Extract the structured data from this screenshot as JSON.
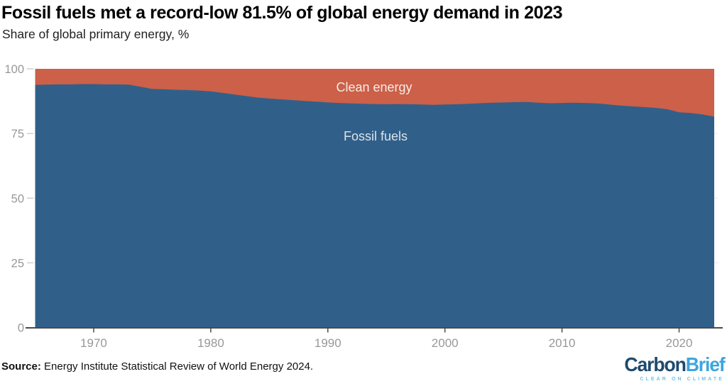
{
  "header": {
    "title": "Fossil fuels met a record-low 81.5% of global energy demand in 2023",
    "subtitle": "Share of global primary energy, %"
  },
  "chart_data": {
    "type": "area",
    "stacked": true,
    "title": "Fossil fuels met a record-low 81.5% of global energy demand in 2023",
    "subtitle": "Share of global primary energy, %",
    "ylabel": "Share of global primary energy, %",
    "xlabel": "",
    "ylim": [
      0,
      100
    ],
    "xlim": [
      1965,
      2023
    ],
    "yticks": [
      0,
      25,
      50,
      75,
      100
    ],
    "xticks": [
      1970,
      1980,
      1990,
      2000,
      2010,
      2020
    ],
    "grid": "horizontal",
    "legend_position": "labels-inside-areas",
    "x": [
      1965,
      1966,
      1967,
      1968,
      1969,
      1970,
      1971,
      1972,
      1973,
      1974,
      1975,
      1976,
      1977,
      1978,
      1979,
      1980,
      1981,
      1982,
      1983,
      1984,
      1985,
      1986,
      1987,
      1988,
      1989,
      1990,
      1991,
      1992,
      1993,
      1994,
      1995,
      1996,
      1997,
      1998,
      1999,
      2000,
      2001,
      2002,
      2003,
      2004,
      2005,
      2006,
      2007,
      2008,
      2009,
      2010,
      2011,
      2012,
      2013,
      2014,
      2015,
      2016,
      2017,
      2018,
      2019,
      2020,
      2021,
      2022,
      2023
    ],
    "series": [
      {
        "name": "Fossil fuels",
        "color": "#30608a",
        "values": [
          93.8,
          93.9,
          94.0,
          94.0,
          94.1,
          94.1,
          94.0,
          94.0,
          93.9,
          93.1,
          92.2,
          92.1,
          91.9,
          91.8,
          91.6,
          91.3,
          90.7,
          90.1,
          89.5,
          88.9,
          88.5,
          88.2,
          87.9,
          87.6,
          87.3,
          87.0,
          86.8,
          86.6,
          86.5,
          86.4,
          86.3,
          86.4,
          86.3,
          86.2,
          86.1,
          86.2,
          86.3,
          86.5,
          86.7,
          86.9,
          87.0,
          87.1,
          87.2,
          86.9,
          86.7,
          86.8,
          86.9,
          86.8,
          86.6,
          86.2,
          85.8,
          85.5,
          85.2,
          84.9,
          84.4,
          83.2,
          82.9,
          82.4,
          81.5
        ]
      },
      {
        "name": "Clean energy",
        "color": "#cc6048",
        "values": [
          6.2,
          6.1,
          6.0,
          6.0,
          5.9,
          5.9,
          6.0,
          6.0,
          6.1,
          6.9,
          7.8,
          7.9,
          8.1,
          8.2,
          8.4,
          8.7,
          9.3,
          9.9,
          10.5,
          11.1,
          11.5,
          11.8,
          12.1,
          12.4,
          12.7,
          13.0,
          13.2,
          13.4,
          13.5,
          13.6,
          13.7,
          13.6,
          13.7,
          13.8,
          13.9,
          13.8,
          13.7,
          13.5,
          13.3,
          13.1,
          13.0,
          12.9,
          12.8,
          13.1,
          13.3,
          13.2,
          13.1,
          13.2,
          13.4,
          13.8,
          14.2,
          14.5,
          14.8,
          15.1,
          15.6,
          16.8,
          17.1,
          17.6,
          18.5
        ]
      }
    ],
    "area_labels": [
      {
        "text": "Clean energy",
        "color": "#f5ece7"
      },
      {
        "text": "Fossil fuels",
        "color": "#dde2e8"
      }
    ],
    "axis_colors": {
      "tick_label": "#989898",
      "grid": "#ececec",
      "y_tick": "#cfcfcf",
      "axis_line": "#4a4a4a"
    }
  },
  "source": {
    "label": "Source:",
    "text": "Energy Institute Statistical Review of World Energy 2024."
  },
  "logo": {
    "part1": "Carbon",
    "part2": "Brief",
    "tagline": "CLEAR ON CLIMATE",
    "color1": "#1d4a6e",
    "color2": "#3da5dd",
    "tagline_color": "#74c0e5"
  }
}
